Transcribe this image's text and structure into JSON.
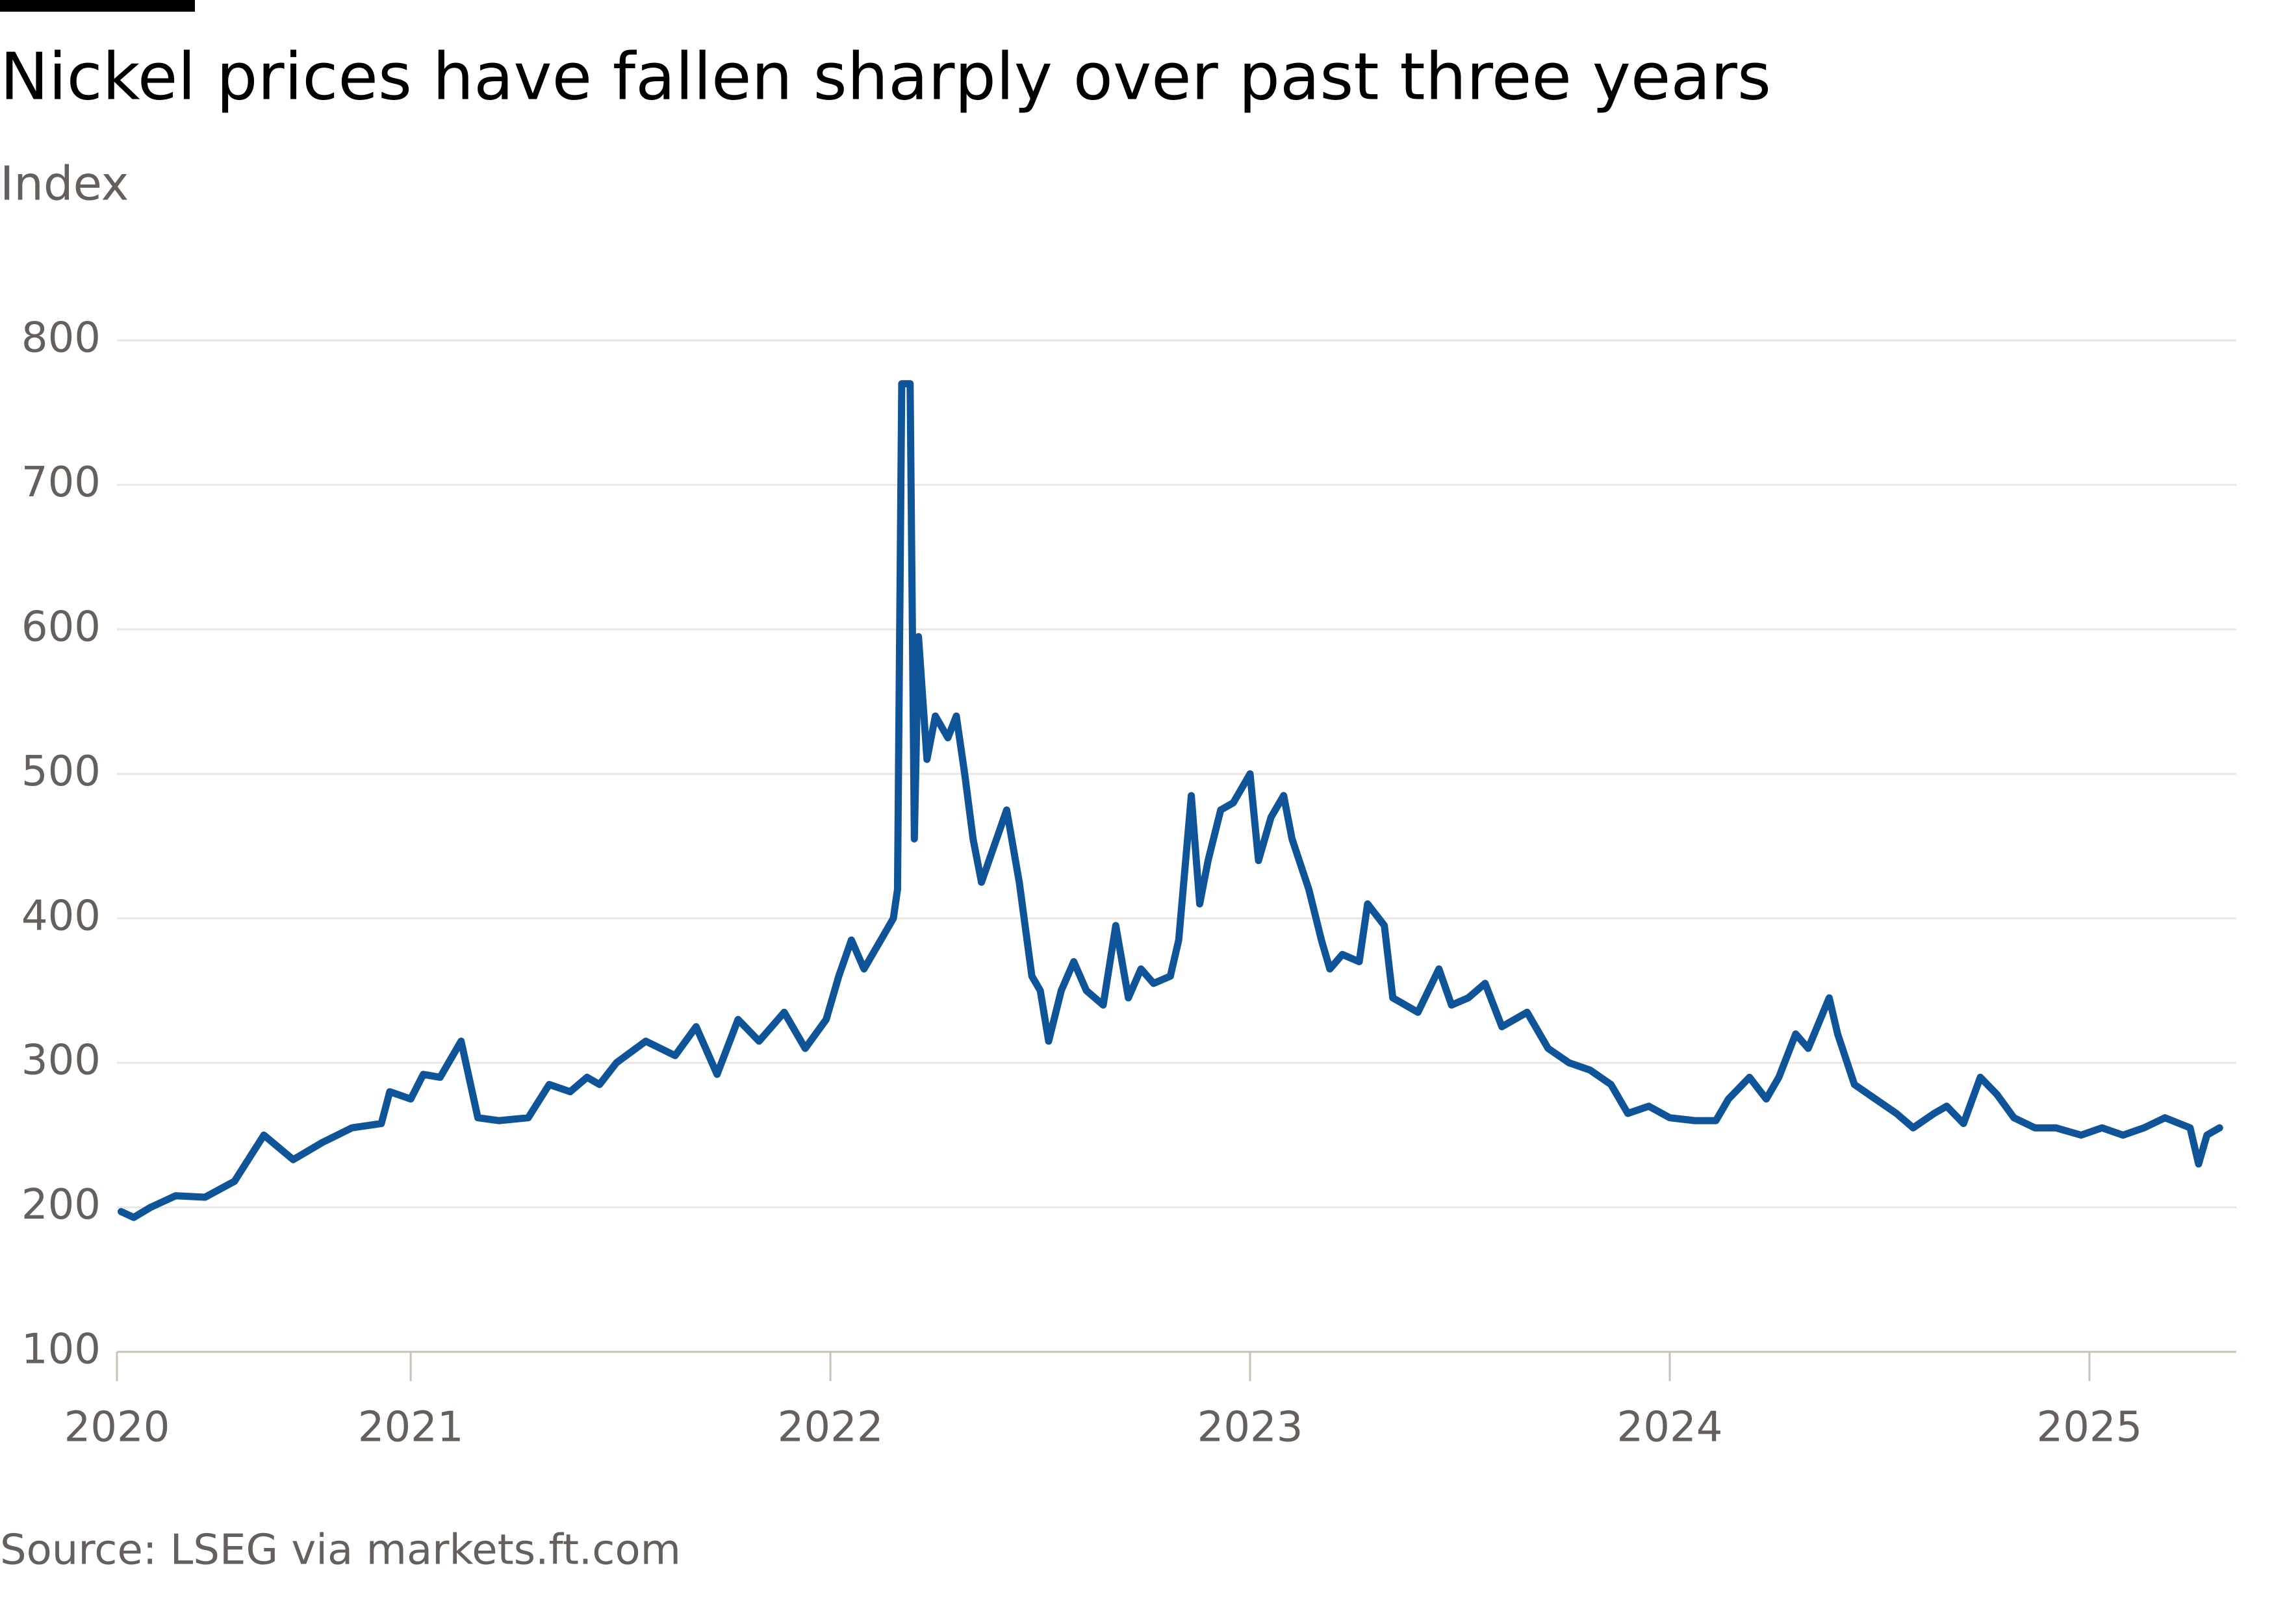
{
  "chart_data": {
    "type": "line",
    "title": "Nickel prices have fallen sharply over past three years",
    "subtitle": "Index",
    "source": "Source: LSEG via markets.ft.com",
    "color": "#0f5499",
    "grid": true,
    "x": [
      2020.31,
      2020.34,
      2020.38,
      2020.44,
      2020.51,
      2020.58,
      2020.65,
      2020.72,
      2020.79,
      2020.86,
      2020.93,
      2020.95,
      2021.0,
      2021.03,
      2021.07,
      2021.12,
      2021.16,
      2021.21,
      2021.28,
      2021.33,
      2021.38,
      2021.42,
      2021.45,
      2021.49,
      2021.56,
      2021.63,
      2021.68,
      2021.73,
      2021.78,
      2021.83,
      2021.89,
      2021.94,
      2021.99,
      2022.02,
      2022.05,
      2022.08,
      2022.11,
      2022.15,
      2022.16,
      2022.17,
      2022.19,
      2022.2,
      2022.21,
      2022.23,
      2022.25,
      2022.28,
      2022.3,
      2022.32,
      2022.34,
      2022.36,
      2022.39,
      2022.42,
      2022.45,
      2022.48,
      2022.5,
      2022.52,
      2022.55,
      2022.58,
      2022.61,
      2022.65,
      2022.68,
      2022.71,
      2022.74,
      2022.77,
      2022.81,
      2022.83,
      2022.86,
      2022.88,
      2022.9,
      2022.93,
      2022.96,
      2023.0,
      2023.02,
      2023.05,
      2023.08,
      2023.1,
      2023.14,
      2023.17,
      2023.19,
      2023.22,
      2023.26,
      2023.28,
      2023.32,
      2023.34,
      2023.4,
      2023.45,
      2023.48,
      2023.52,
      2023.56,
      2023.6,
      2023.66,
      2023.71,
      2023.76,
      2023.81,
      2023.86,
      2023.9,
      2023.95,
      2024.0,
      2024.06,
      2024.11,
      2024.14,
      2024.19,
      2024.23,
      2024.26,
      2024.3,
      2024.33,
      2024.38,
      2024.4,
      2024.44,
      2024.49,
      2024.54,
      2024.58,
      2024.63,
      2024.66,
      2024.7,
      2024.74,
      2024.78,
      2024.82,
      2024.87,
      2024.92,
      2024.98,
      2025.03,
      2025.08,
      2025.13,
      2025.18,
      2025.24,
      2025.26,
      2025.28,
      2025.31
    ],
    "values": [
      197,
      193,
      200,
      208,
      207,
      218,
      250,
      233,
      245,
      255,
      258,
      280,
      275,
      292,
      290,
      315,
      262,
      260,
      262,
      285,
      280,
      290,
      285,
      300,
      315,
      305,
      325,
      292,
      330,
      315,
      335,
      310,
      330,
      360,
      385,
      365,
      380,
      400,
      420,
      770,
      770,
      455,
      595,
      510,
      540,
      525,
      540,
      500,
      455,
      425,
      450,
      475,
      425,
      360,
      350,
      315,
      350,
      370,
      350,
      340,
      395,
      345,
      365,
      355,
      360,
      385,
      485,
      410,
      440,
      475,
      480,
      500,
      440,
      470,
      485,
      455,
      420,
      385,
      365,
      375,
      370,
      410,
      395,
      345,
      335,
      365,
      340,
      345,
      355,
      325,
      335,
      310,
      300,
      295,
      285,
      265,
      270,
      262,
      260,
      260,
      275,
      290,
      275,
      290,
      320,
      310,
      345,
      320,
      285,
      275,
      265,
      255,
      265,
      270,
      258,
      290,
      278,
      262,
      255,
      255,
      250,
      255,
      250,
      255,
      262,
      255,
      230,
      250,
      255
    ],
    "xlim": [
      2020.3,
      2025.35
    ],
    "xticks": [
      {
        "value": 2020.3,
        "label": "2020"
      },
      2021,
      2022,
      2023,
      2024,
      2025
    ],
    "ylim": [
      100,
      800
    ],
    "yticks": [
      100,
      200,
      300,
      400,
      500,
      600,
      700,
      800
    ]
  }
}
